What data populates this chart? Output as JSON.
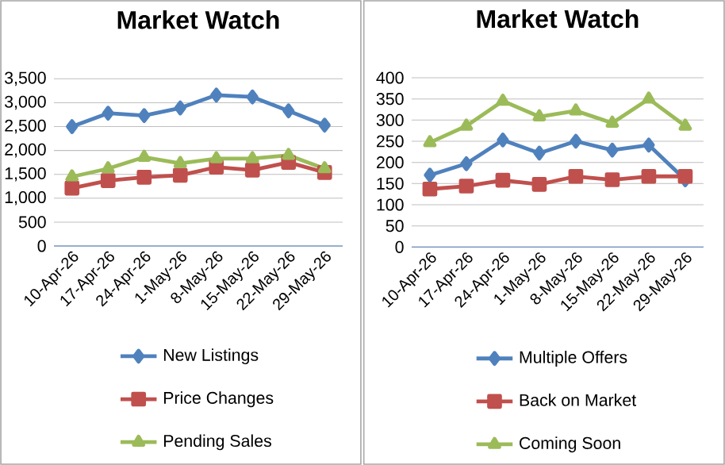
{
  "chart_data": [
    {
      "type": "line",
      "title": "Market Watch",
      "categories": [
        "10-Apr-26",
        "17-Apr-26",
        "24-Apr-26",
        "1-May-26",
        "8-May-26",
        "15-May-26",
        "22-May-26",
        "29-May-26"
      ],
      "series": [
        {
          "name": "New Listings",
          "color": "#4f81bd",
          "marker": "diamond",
          "values": [
            2500,
            2780,
            2730,
            2890,
            3160,
            3120,
            2830,
            2530
          ]
        },
        {
          "name": "Price Changes",
          "color": "#c0504d",
          "marker": "square",
          "values": [
            1210,
            1370,
            1440,
            1480,
            1650,
            1590,
            1750,
            1540
          ]
        },
        {
          "name": "Pending Sales",
          "color": "#9bbb59",
          "marker": "triangle",
          "values": [
            1450,
            1620,
            1860,
            1730,
            1830,
            1830,
            1900,
            1620
          ]
        }
      ],
      "ylim": [
        0,
        3500
      ],
      "yticks": [
        {
          "value": 0,
          "label": "0"
        },
        {
          "value": 500,
          "label": "500"
        },
        {
          "value": 1000,
          "label": "1,000"
        },
        {
          "value": 1500,
          "label": "1,500"
        },
        {
          "value": 2000,
          "label": "2,000"
        },
        {
          "value": 2500,
          "label": "2,500"
        },
        {
          "value": 3000,
          "label": "3,000"
        },
        {
          "value": 3500,
          "label": "3,500"
        }
      ],
      "grid": "y",
      "legend": "bottom"
    },
    {
      "type": "line",
      "title": "Market Watch",
      "categories": [
        "10-Apr-26",
        "17-Apr-26",
        "24-Apr-26",
        "1-May-26",
        "8-May-26",
        "15-May-26",
        "22-May-26",
        "29-May-26"
      ],
      "series": [
        {
          "name": "Multiple Offers",
          "color": "#4f81bd",
          "marker": "diamond",
          "values": [
            170,
            197,
            253,
            222,
            250,
            229,
            241,
            159
          ]
        },
        {
          "name": "Back on Market",
          "color": "#c0504d",
          "marker": "square",
          "values": [
            137,
            144,
            158,
            148,
            167,
            159,
            167,
            167
          ]
        },
        {
          "name": "Coming Soon",
          "color": "#9bbb59",
          "marker": "triangle",
          "values": [
            247,
            286,
            345,
            308,
            322,
            293,
            350,
            286
          ]
        }
      ],
      "ylim": [
        0,
        400
      ],
      "yticks": [
        0,
        50,
        100,
        150,
        200,
        250,
        300,
        350,
        400
      ],
      "grid": "y",
      "legend": "bottom"
    }
  ]
}
